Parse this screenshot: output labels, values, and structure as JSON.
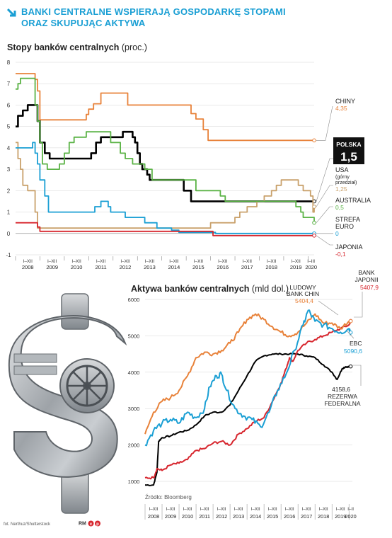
{
  "header": {
    "title_line1": "BANKI CENTRALNE WSPIERAJĄ GOSPODARKĘ STOPAMI",
    "title_line2": "ORAZ SKUPUJĄC AKTYWA",
    "accent_color": "#1a9fd4"
  },
  "chart1": {
    "subtitle": "Stopy banków centralnych",
    "unit": "(proc.)"
  },
  "chart2": {
    "subtitle": "Aktywa banków centralnych",
    "unit": "(mld dol.)",
    "source": "Źródło: Bloomberg"
  },
  "photo": {
    "icon": "dollar-vault-icon",
    "credit": "fot. Nerthuz/Shutterstock",
    "mark": "RM"
  },
  "chart_data": [
    {
      "type": "line",
      "title": "Stopy banków centralnych",
      "ylabel": "(proc.)",
      "ylim": [
        -1,
        8
      ],
      "yticks": [
        "8",
        "7",
        "6",
        "5",
        "4",
        "3",
        "2",
        "1",
        "0",
        "-1"
      ],
      "xlim": [
        2008.0,
        2020.25
      ],
      "xticks": [
        {
          "t": "I–XII",
          "y": "2008"
        },
        {
          "t": "I–XII",
          "y": "2009"
        },
        {
          "t": "I–XII",
          "y": "2010"
        },
        {
          "t": "I–XII",
          "y": "2011"
        },
        {
          "t": "I–XII",
          "y": "2012"
        },
        {
          "t": "I–XII",
          "y": "2013"
        },
        {
          "t": "I–XII",
          "y": "2014"
        },
        {
          "t": "I–XII",
          "y": "2015"
        },
        {
          "t": "I–XII",
          "y": "2016"
        },
        {
          "t": "I–XII",
          "y": "2017"
        },
        {
          "t": "I–XII",
          "y": "2018"
        },
        {
          "t": "I–XII",
          "y": "2019"
        },
        {
          "t": "I–III",
          "y": "2020"
        }
      ],
      "series": [
        {
          "name": "CHINY",
          "value_label": "4,35",
          "color": "#e8823a",
          "x": [
            2008.0,
            2008.7,
            2008.8,
            2008.9,
            2009.0,
            2010.8,
            2010.9,
            2011.0,
            2011.2,
            2011.5,
            2012.5,
            2012.6,
            2014.9,
            2015.2,
            2015.4,
            2015.7,
            2015.9,
            2020.25
          ],
          "y": [
            7.47,
            7.47,
            7.2,
            6.66,
            5.31,
            5.31,
            5.56,
            5.81,
            6.06,
            6.56,
            6.56,
            6.0,
            6.0,
            5.6,
            5.35,
            4.85,
            4.35,
            4.35
          ]
        },
        {
          "name": "POLSKA",
          "value_label": "1,5",
          "color": "#000000",
          "x": [
            2008.0,
            2008.1,
            2008.3,
            2008.5,
            2008.8,
            2008.9,
            2009.0,
            2009.2,
            2009.4,
            2009.6,
            2011.1,
            2011.3,
            2011.5,
            2012.4,
            2012.6,
            2012.8,
            2012.9,
            2013.0,
            2013.1,
            2013.2,
            2013.4,
            2013.5,
            2014.7,
            2014.9,
            2015.1,
            2015.2,
            2020.25
          ],
          "y": [
            5.0,
            5.5,
            5.75,
            6.0,
            6.0,
            5.25,
            4.25,
            3.75,
            3.5,
            3.5,
            3.75,
            4.25,
            4.5,
            4.75,
            4.75,
            4.5,
            4.25,
            3.75,
            3.25,
            3.0,
            2.75,
            2.5,
            2.5,
            2.0,
            2.0,
            1.5,
            1.5
          ]
        },
        {
          "name": "USA (górny przedział)",
          "value_label": "1,25",
          "color": "#c9a16b",
          "x": [
            2008.0,
            2008.1,
            2008.2,
            2008.3,
            2008.5,
            2008.8,
            2008.9,
            2009.0,
            2015.9,
            2016.0,
            2016.9,
            2017.0,
            2017.2,
            2017.5,
            2017.9,
            2018.2,
            2018.5,
            2018.7,
            2018.9,
            2019.5,
            2019.6,
            2019.8,
            2020.1,
            2020.2,
            2020.25
          ],
          "y": [
            4.25,
            3.5,
            3.0,
            2.25,
            2.0,
            1.0,
            0.25,
            0.25,
            0.25,
            0.5,
            0.5,
            0.75,
            1.0,
            1.25,
            1.5,
            1.75,
            2.0,
            2.25,
            2.5,
            2.5,
            2.25,
            2.0,
            1.75,
            1.0,
            1.25
          ]
        },
        {
          "name": "AUSTRALIA",
          "value_label": "0,5",
          "color": "#5bb346",
          "x": [
            2008.0,
            2008.1,
            2008.2,
            2008.7,
            2008.8,
            2008.9,
            2009.0,
            2009.1,
            2009.3,
            2009.7,
            2009.8,
            2010.0,
            2010.2,
            2010.4,
            2010.9,
            2011.8,
            2011.9,
            2012.3,
            2012.5,
            2012.8,
            2013.3,
            2013.6,
            2015.1,
            2015.4,
            2016.4,
            2016.6,
            2019.4,
            2019.5,
            2019.7,
            2019.8,
            2020.2,
            2020.25
          ],
          "y": [
            6.75,
            7.0,
            7.25,
            7.25,
            6.0,
            5.25,
            4.25,
            3.25,
            3.0,
            3.0,
            3.25,
            3.75,
            4.25,
            4.5,
            4.75,
            4.75,
            4.25,
            3.75,
            3.5,
            3.25,
            3.0,
            2.5,
            2.5,
            2.0,
            1.75,
            1.5,
            1.5,
            1.25,
            1.0,
            0.75,
            0.75,
            0.5
          ]
        },
        {
          "name": "STREFA EURO",
          "value_label": "0",
          "color": "#1a9fd4",
          "x": [
            2008.0,
            2008.6,
            2008.7,
            2008.8,
            2008.9,
            2009.0,
            2009.2,
            2009.35,
            2011.25,
            2011.5,
            2011.8,
            2011.9,
            2012.5,
            2013.3,
            2013.8,
            2014.4,
            2014.7,
            2016.2,
            2020.25
          ],
          "y": [
            4.0,
            4.0,
            4.25,
            3.75,
            3.25,
            2.5,
            1.75,
            1.0,
            1.25,
            1.5,
            1.25,
            1.0,
            0.75,
            0.5,
            0.25,
            0.15,
            0.05,
            0.0,
            0.0
          ]
        },
        {
          "name": "JAPONIA",
          "value_label": "-0,1",
          "color": "#d7262e",
          "x": [
            2008.0,
            2008.8,
            2008.9,
            2009.0,
            2016.0,
            2016.1,
            2020.25
          ],
          "y": [
            0.5,
            0.5,
            0.3,
            0.1,
            0.1,
            -0.1,
            -0.1
          ]
        }
      ]
    },
    {
      "type": "line",
      "title": "Aktywa banków centralnych",
      "ylabel": "(mld dol.)",
      "ylim": [
        1000,
        6000
      ],
      "yticks": [
        "6000",
        "5000",
        "4000",
        "3000",
        "2000",
        "1000"
      ],
      "xlim": [
        2008.0,
        2020.2
      ],
      "xticks": [
        {
          "t": "I–XII",
          "y": "2008"
        },
        {
          "t": "I–XII",
          "y": "2009"
        },
        {
          "t": "I–XII",
          "y": "2010"
        },
        {
          "t": "I–XII",
          "y": "2011"
        },
        {
          "t": "I–XII",
          "y": "2012"
        },
        {
          "t": "I–XII",
          "y": "2013"
        },
        {
          "t": "I–XII",
          "y": "2014"
        },
        {
          "t": "I–XII",
          "y": "2015"
        },
        {
          "t": "I–XII",
          "y": "2016"
        },
        {
          "t": "I–XII",
          "y": "2017"
        },
        {
          "t": "I–XII",
          "y": "2018"
        },
        {
          "t": "I–XII",
          "y": "2019"
        },
        {
          "t": "I–II",
          "y": "2020"
        }
      ],
      "series": [
        {
          "name": "LUDOWY BANK CHIN",
          "value_label": "5404,4",
          "color": "#e8823a",
          "x": [
            2008.0,
            2008.5,
            2009.0,
            2009.5,
            2010.0,
            2010.5,
            2011.0,
            2011.5,
            2012.0,
            2012.5,
            2013.0,
            2013.5,
            2014.0,
            2014.5,
            2015.0,
            2015.5,
            2016.0,
            2016.5,
            2017.0,
            2017.5,
            2018.0,
            2018.5,
            2019.0,
            2019.5,
            2020.0,
            2020.1
          ],
          "y": [
            2300,
            2900,
            3200,
            3300,
            3500,
            3900,
            4400,
            4550,
            4500,
            4600,
            4800,
            5100,
            5450,
            5600,
            5450,
            5250,
            5100,
            5000,
            5100,
            5350,
            5600,
            5350,
            5350,
            5200,
            5404,
            5404
          ]
        },
        {
          "name": "BANK JAPONII",
          "value_label": "5407,9",
          "color": "#d7262e",
          "x": [
            2008.0,
            2008.5,
            2008.7,
            2009.0,
            2009.5,
            2010.0,
            2010.5,
            2011.0,
            2011.5,
            2012.0,
            2012.5,
            2013.0,
            2013.5,
            2014.0,
            2014.5,
            2015.0,
            2015.5,
            2016.0,
            2016.3,
            2016.5,
            2016.7,
            2017.0,
            2017.5,
            2018.0,
            2018.5,
            2019.0,
            2019.5,
            2020.0,
            2020.1
          ],
          "y": [
            1100,
            1100,
            1350,
            1300,
            1450,
            1500,
            1600,
            1850,
            1900,
            2050,
            2100,
            2000,
            2300,
            2450,
            2650,
            2750,
            3200,
            3700,
            4100,
            4400,
            4300,
            4600,
            4800,
            4900,
            5000,
            5100,
            5200,
            5300,
            5408
          ]
        },
        {
          "name": "EBC",
          "value_label": "5090,6",
          "color": "#1a9fd4",
          "x": [
            2008.0,
            2008.5,
            2009.0,
            2009.5,
            2010.0,
            2010.5,
            2011.0,
            2011.5,
            2011.8,
            2012.2,
            2012.5,
            2012.8,
            2013.3,
            2013.8,
            2014.3,
            2014.8,
            2015.3,
            2015.8,
            2016.3,
            2016.8,
            2017.3,
            2017.6,
            2018.0,
            2018.5,
            2019.0,
            2019.5,
            2020.0,
            2020.1
          ],
          "y": [
            2000,
            2400,
            2600,
            2700,
            2600,
            2900,
            2750,
            3000,
            3600,
            3900,
            3950,
            3500,
            3000,
            2800,
            2700,
            2500,
            2900,
            3500,
            3950,
            4600,
            5300,
            5700,
            5400,
            5300,
            5200,
            5100,
            5200,
            5091
          ]
        },
        {
          "name": "REZERWA FEDERALNA",
          "value_label": "4158,6",
          "color": "#000000",
          "x": [
            2008.0,
            2008.5,
            2008.7,
            2008.8,
            2009.0,
            2009.5,
            2010.0,
            2010.5,
            2011.0,
            2011.5,
            2012.0,
            2012.5,
            2013.0,
            2013.5,
            2014.0,
            2014.5,
            2015.0,
            2015.5,
            2016.0,
            2016.5,
            2017.0,
            2017.5,
            2018.0,
            2018.5,
            2019.0,
            2019.3,
            2019.6,
            2019.8,
            2020.0,
            2020.1
          ],
          "y": [
            900,
            900,
            1250,
            2100,
            2200,
            2250,
            2350,
            2400,
            2550,
            2800,
            2900,
            2900,
            3100,
            3500,
            3900,
            4300,
            4450,
            4500,
            4500,
            4500,
            4500,
            4450,
            4400,
            4200,
            4000,
            3800,
            4100,
            4150,
            4150,
            4159
          ]
        }
      ]
    }
  ]
}
